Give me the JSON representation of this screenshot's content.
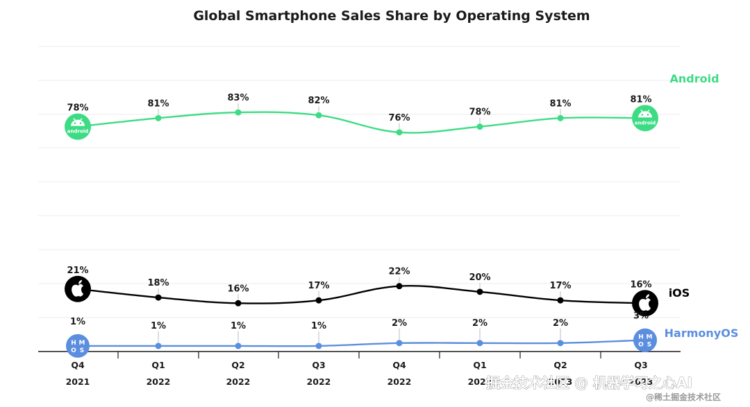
{
  "chart_data": {
    "type": "line",
    "title": "Global Smartphone Sales Share by Operating System",
    "categories": [
      "Q4 2021",
      "Q1 2022",
      "Q2 2022",
      "Q3 2022",
      "Q4 2022",
      "Q1 2023",
      "Q2 2023",
      "Q3 2023"
    ],
    "quarters": [
      "Q4",
      "Q1",
      "Q2",
      "Q3",
      "Q4",
      "Q1",
      "Q2",
      "Q3"
    ],
    "years": [
      "2021",
      "2022",
      "2022",
      "2022",
      "2022",
      "2023",
      "2023",
      "2023"
    ],
    "unit": "%",
    "series": [
      {
        "name": "Android",
        "color": "#3ddc84",
        "icon": "android-icon",
        "values": [
          78,
          81,
          83,
          82,
          76,
          78,
          81,
          81
        ],
        "labels": [
          "78%",
          "81%",
          "83%",
          "82%",
          "76%",
          "78%",
          "81%",
          "81%"
        ]
      },
      {
        "name": "iOS",
        "color": "#000000",
        "icon": "apple-icon",
        "values": [
          21,
          18,
          16,
          17,
          22,
          20,
          17,
          16
        ],
        "labels": [
          "21%",
          "18%",
          "16%",
          "17%",
          "22%",
          "20%",
          "17%",
          "16%"
        ]
      },
      {
        "name": "HarmonyOS",
        "color": "#5b8ede",
        "icon": "harmonyos-icon",
        "values": [
          1,
          1,
          1,
          1,
          2,
          2,
          2,
          3
        ],
        "labels": [
          "1%",
          "1%",
          "1%",
          "1%",
          "2%",
          "2%",
          "2%",
          "3%"
        ]
      }
    ],
    "badges": {
      "android": "android",
      "harmonyos": [
        "H",
        "M",
        "O",
        "S"
      ]
    },
    "grid": true,
    "legend": "right, inline labels at line ends"
  },
  "watermark": {
    "main": "掘金技术社区 @ 机器学习之心AI",
    "sub": "@稀土掘金技术社区"
  }
}
